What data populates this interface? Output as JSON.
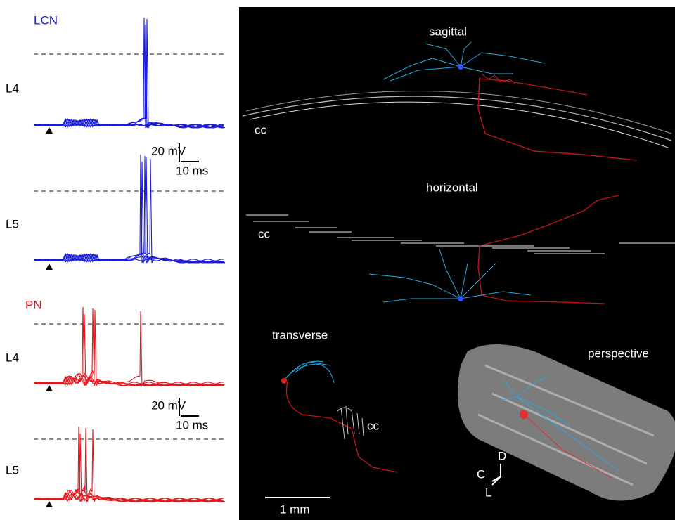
{
  "recordings": [
    {
      "label": "LCN",
      "rows": [
        {
          "layer": "L4"
        },
        {
          "layer": "L5"
        }
      ],
      "scale": {
        "voltage": "20 mV",
        "time": "10 ms"
      }
    },
    {
      "label": "PN",
      "rows": [
        {
          "layer": "L4"
        },
        {
          "layer": "L5"
        }
      ],
      "scale": {
        "voltage": "20 mV",
        "time": "10 ms"
      }
    }
  ],
  "reconstruction": {
    "views": [
      {
        "title": "sagittal",
        "tract": "cc"
      },
      {
        "title": "horizontal",
        "tract": "cc"
      },
      {
        "title": "transverse",
        "tract": "cc"
      },
      {
        "title": "perspective"
      }
    ],
    "scale_bar": "1 mm",
    "axes": {
      "caudal": "C",
      "dorsal": "D",
      "lateral": "L"
    }
  }
}
